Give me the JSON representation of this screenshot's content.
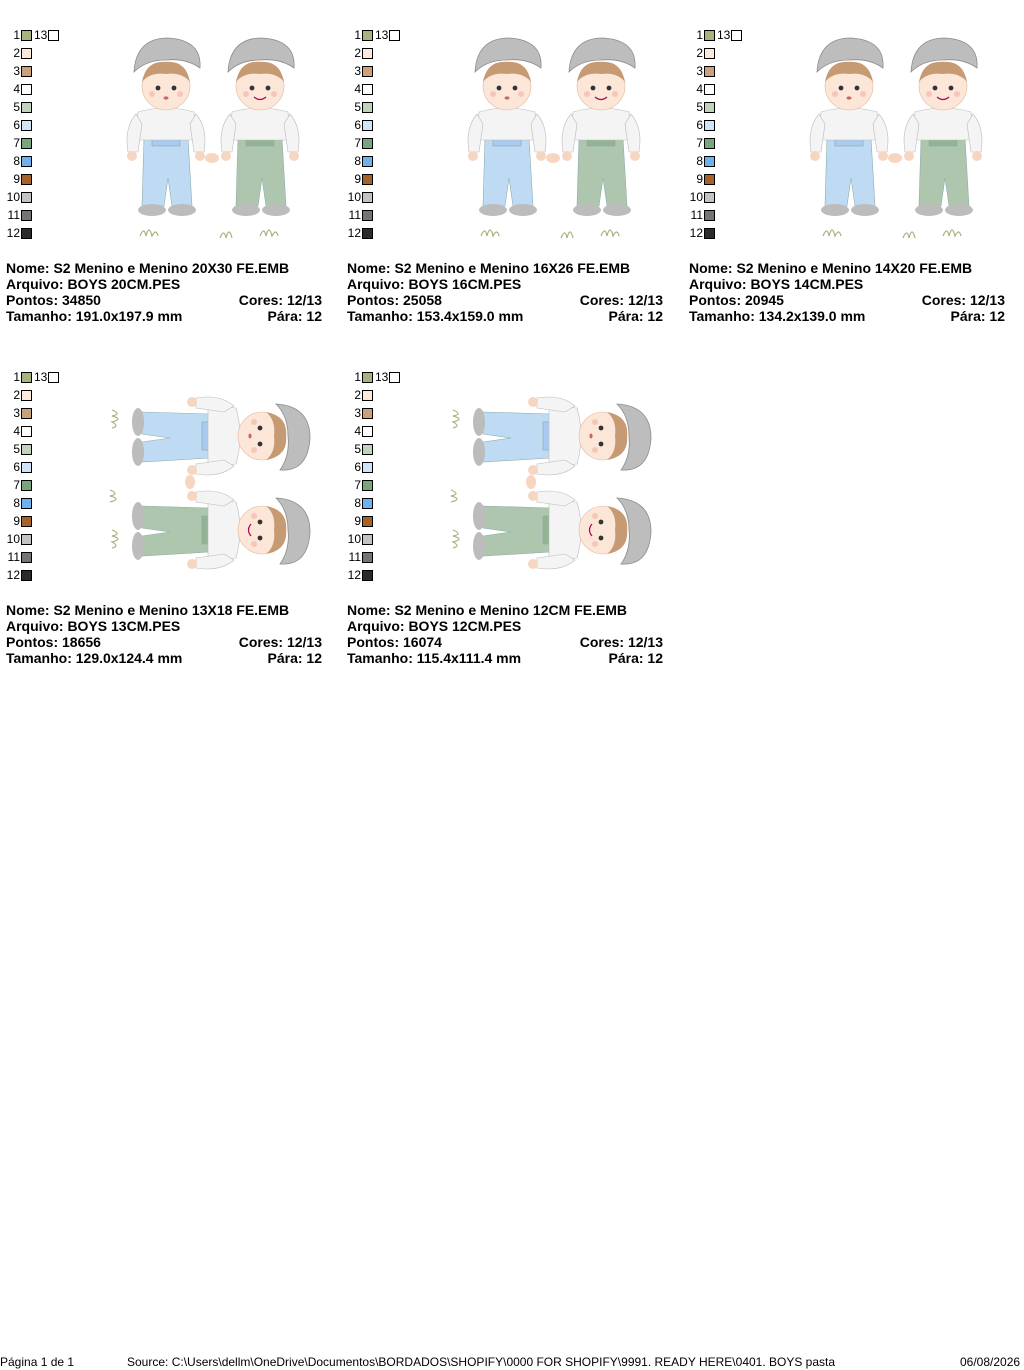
{
  "palette": {
    "colors": [
      {
        "num": "1",
        "color": "#a7b37e"
      },
      {
        "num": "2",
        "color": "#fde9dc"
      },
      {
        "num": "3",
        "color": "#c9a17b"
      },
      {
        "num": "4",
        "color": "#ffffff"
      },
      {
        "num": "5",
        "color": "#c2d3bd"
      },
      {
        "num": "6",
        "color": "#cfe4f7"
      },
      {
        "num": "7",
        "color": "#79a57c"
      },
      {
        "num": "8",
        "color": "#6fb1ee"
      },
      {
        "num": "9",
        "color": "#a5632b"
      },
      {
        "num": "10",
        "color": "#c3c3c3"
      },
      {
        "num": "11",
        "color": "#747474"
      },
      {
        "num": "12",
        "color": "#2a2a2a"
      }
    ],
    "extra": {
      "num": "13",
      "color": "#ffffff"
    }
  },
  "designs": [
    {
      "nome": "Nome: S2 Menino e Menino 20X30 FE.EMB",
      "arquivo": "Arquivo: BOYS 20CM.PES",
      "pontos": "Pontos: 34850",
      "cores": "Cores: 12/13",
      "tamanho": "Tamanho: 191.0x197.9 mm",
      "para": "Pára: 12",
      "orientation": "upright"
    },
    {
      "nome": "Nome: S2 Menino e Menino 16X26 FE.EMB",
      "arquivo": "Arquivo: BOYS 16CM.PES",
      "pontos": "Pontos: 25058",
      "cores": "Cores: 12/13",
      "tamanho": "Tamanho: 153.4x159.0 mm",
      "para": "Pára: 12",
      "orientation": "upright"
    },
    {
      "nome": "Nome: S2 Menino e Menino 14X20  FE.EMB",
      "arquivo": "Arquivo: BOYS 14CM.PES",
      "pontos": "Pontos: 20945",
      "cores": "Cores: 12/13",
      "tamanho": "Tamanho: 134.2x139.0 mm",
      "para": "Pára: 12",
      "orientation": "upright"
    },
    {
      "nome": "Nome: S2 Menino e Menino 13X18 FE.EMB",
      "arquivo": "Arquivo: BOYS 13CM.PES",
      "pontos": "Pontos: 18656",
      "cores": "Cores: 12/13",
      "tamanho": "Tamanho: 129.0x124.4 mm",
      "para": "Pára: 12",
      "orientation": "rotated"
    },
    {
      "nome": "Nome: S2 Menino e Menino 12CM FE.EMB",
      "arquivo": "Arquivo: BOYS 12CM.PES",
      "pontos": "Pontos: 16074",
      "cores": "Cores: 12/13",
      "tamanho": "Tamanho: 115.4x111.4 mm",
      "para": "Pára: 12",
      "orientation": "rotated"
    }
  ],
  "footer": {
    "page": "Página 1 de 1",
    "source": "Source: C:\\Users\\dellm\\OneDrive\\Documentos\\BORDADOS\\SHOPIFY\\0000 FOR SHOPIFY\\9991. READY HERE\\0401. BOYS pasta",
    "date": "06/08/2026"
  }
}
